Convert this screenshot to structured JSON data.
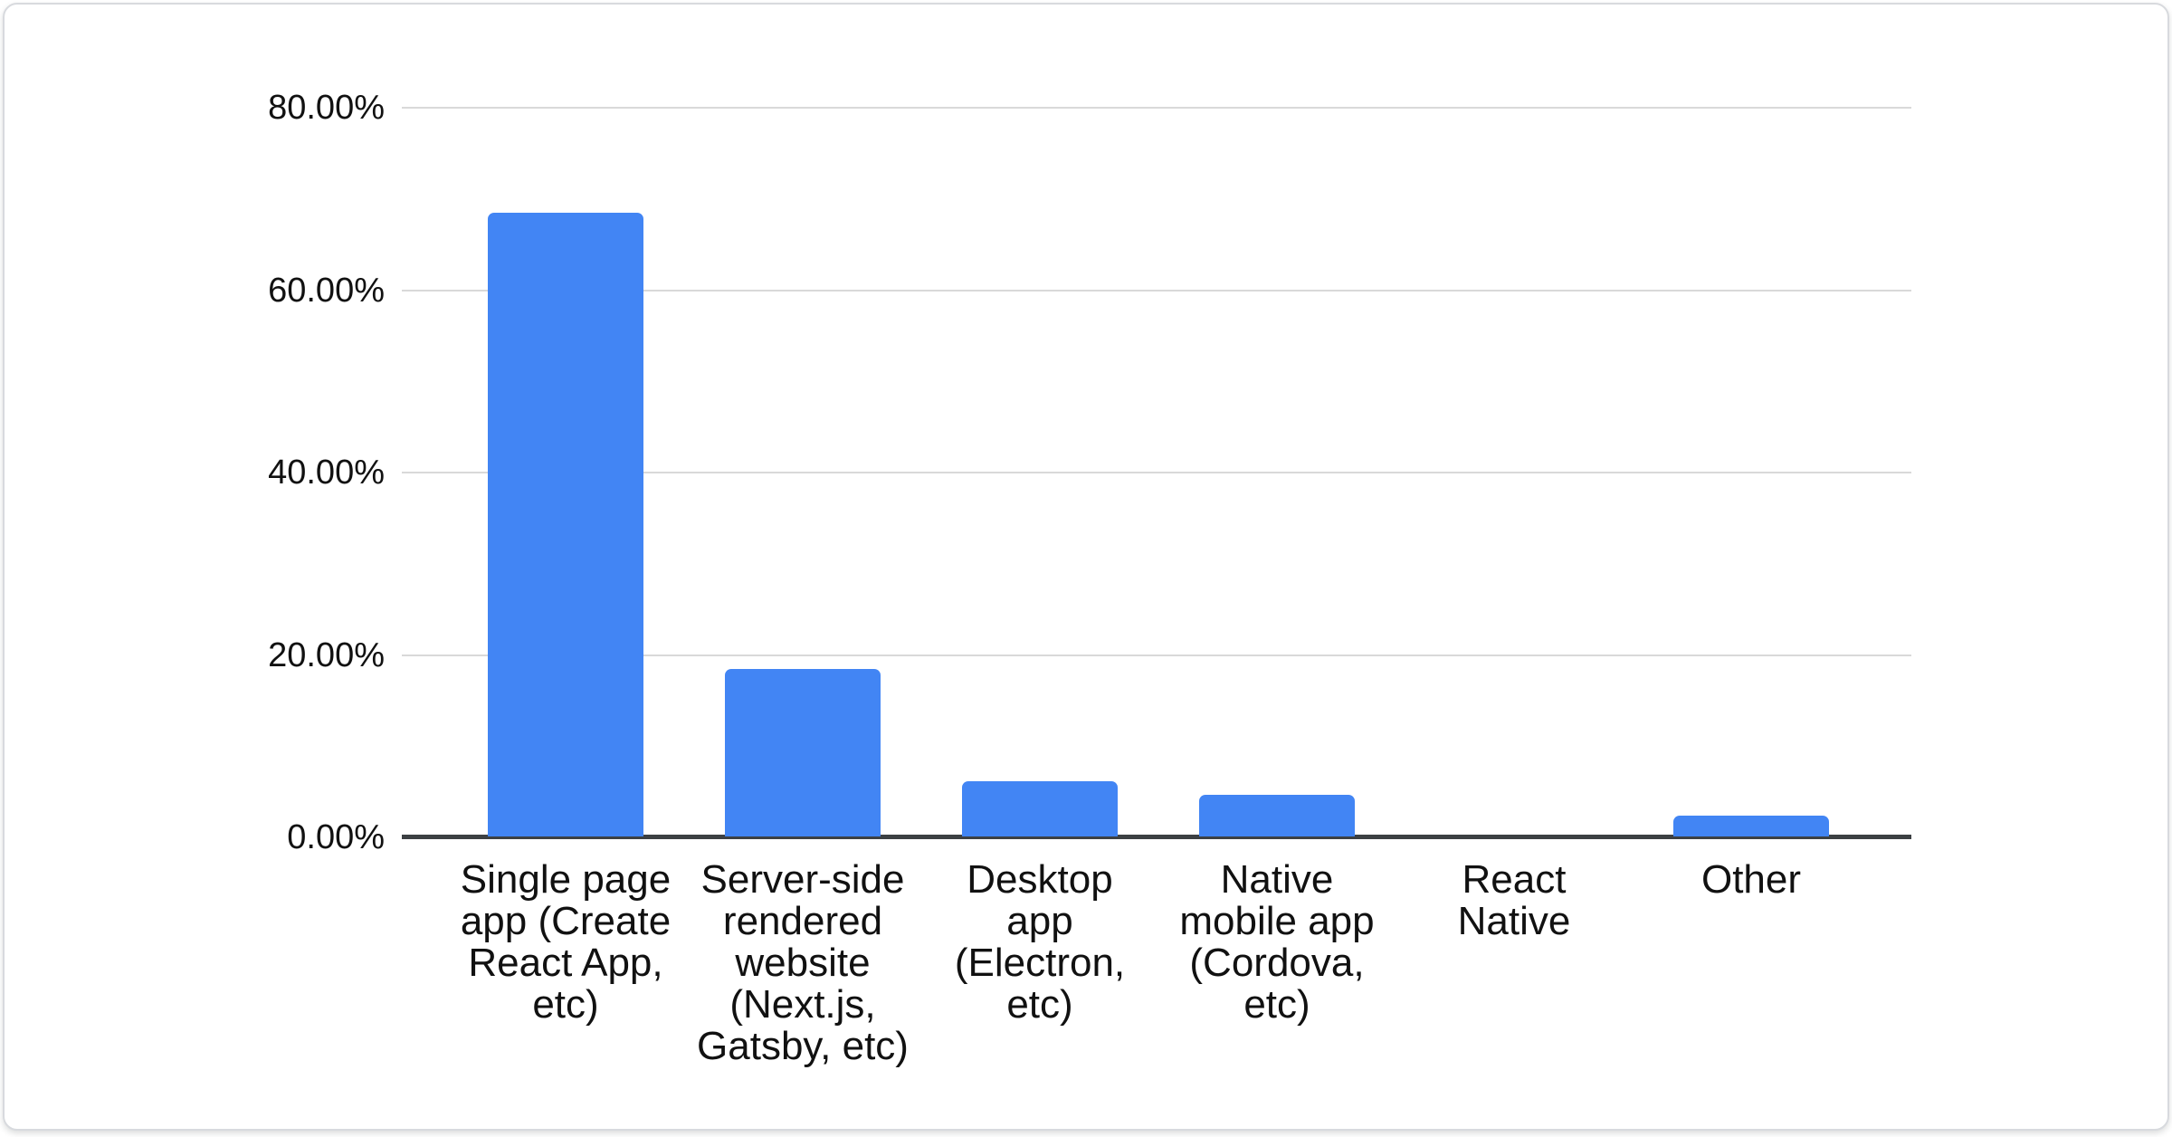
{
  "page": {
    "background": "#ffffff"
  },
  "card": {
    "background": "#ffffff",
    "border_color": "#d8dade"
  },
  "chart_data": {
    "type": "bar",
    "title": "",
    "xlabel": "",
    "ylabel": "",
    "value_format": "percent",
    "legend": "none",
    "grid": "horizontal",
    "ylim": [
      0,
      80
    ],
    "categories": [
      "Single page app (Create React App, etc)",
      "Server-side rendered website (Next.js, Gatsby, etc)",
      "Desktop app (Electron, etc)",
      "Native mobile app (Cordova, etc)",
      "React Native",
      "Other"
    ],
    "category_wraps": [
      "Single page\napp (Create\nReact App,\netc)",
      "Server-side\nrendered\nwebsite\n(Next.js,\nGatsby, etc)",
      "Desktop\napp\n(Electron,\netc)",
      "Native\nmobile app\n(Cordova,\netc)",
      "React\nNative",
      "Other"
    ],
    "values": [
      68.4,
      18.4,
      6.1,
      4.6,
      0,
      2.3
    ],
    "y_tick_labels": [
      "80.00%",
      "60.00%",
      "40.00%",
      "20.00%",
      "0.00%"
    ],
    "y_tick_values": [
      80,
      60,
      40,
      20,
      0
    ],
    "colors": {
      "bar": "#4285f4",
      "gridline": "#d9d9d9",
      "axis_line": "#3c4043",
      "text": "#111111"
    }
  }
}
